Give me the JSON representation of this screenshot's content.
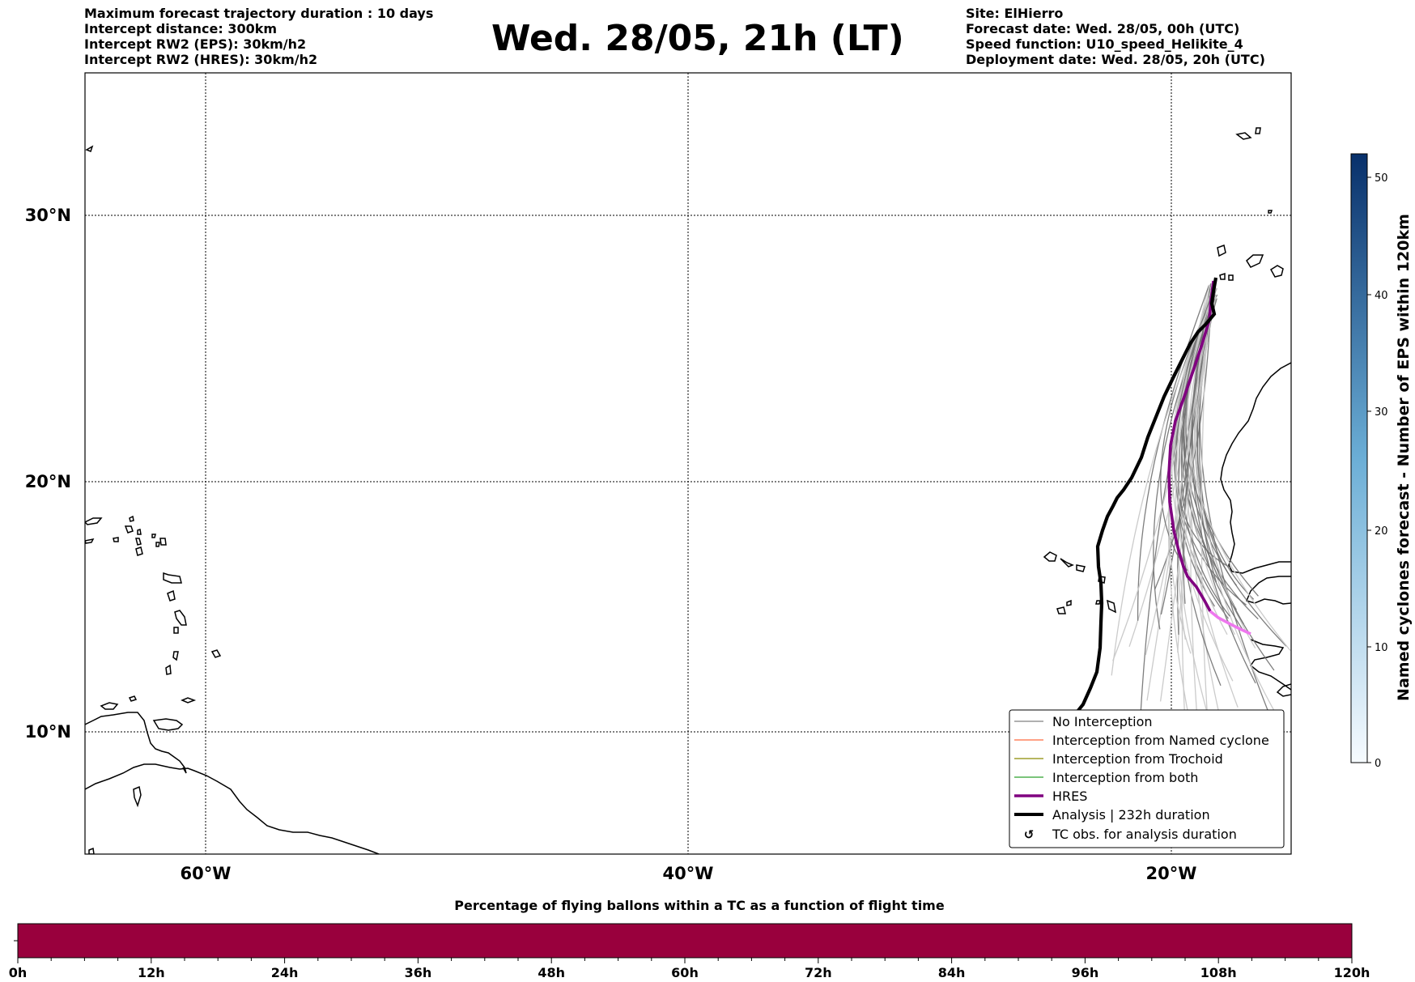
{
  "header": {
    "left": [
      "Maximum forecast trajectory duration : 10 days",
      "Intercept distance: 300km",
      "Intercept RW2 (EPS):  30km/h2",
      "Intercept RW2 (HRES): 30km/h2"
    ],
    "title": "Wed. 28/05, 21h (LT)",
    "right": [
      "Site: ElHierro",
      "Forecast date: Wed. 28/05, 00h (UTC)",
      "Speed function: U10_speed_Helikite_4",
      "Deployment date: Wed. 28/05, 20h (UTC)"
    ]
  },
  "map": {
    "lat_labels": [
      "30°N",
      "20°N",
      "10°N"
    ],
    "lon_labels": [
      "60°W",
      "40°W",
      "20°W"
    ]
  },
  "legend": {
    "items": [
      {
        "label": "No Interception",
        "color": "#808080"
      },
      {
        "label": "Interception from Named cyclone",
        "color": "#ff6a3d"
      },
      {
        "label": "Interception from Trochoid",
        "color": "#8b8b00"
      },
      {
        "label": "Interception from both",
        "color": "#2ca02c"
      },
      {
        "label": "HRES",
        "color": "#800080"
      },
      {
        "label": "Analysis | 232h duration",
        "color": "#000000"
      },
      {
        "label": "TC obs. for analysis duration",
        "color": "#000000"
      }
    ]
  },
  "colorbar": {
    "title": "Named cyclones forecast - Number of EPS within 120km",
    "ticks": [
      "0",
      "10",
      "20",
      "30",
      "40",
      "50"
    ],
    "color_low": "#f7fbff",
    "color_high": "#08306b"
  },
  "timebar": {
    "title": "Percentage of flying ballons within a TC as a function of flight time",
    "ticks": [
      "0h",
      "12h",
      "24h",
      "36h",
      "48h",
      "60h",
      "72h",
      "84h",
      "96h",
      "108h",
      "120h"
    ],
    "fill_color": "#99003d"
  },
  "colors": {
    "hres": "#800080",
    "hres_tail": "#ee77ee",
    "analysis": "#000000",
    "ens_dark": "#707070",
    "ens_light": "#c8c8c8"
  }
}
